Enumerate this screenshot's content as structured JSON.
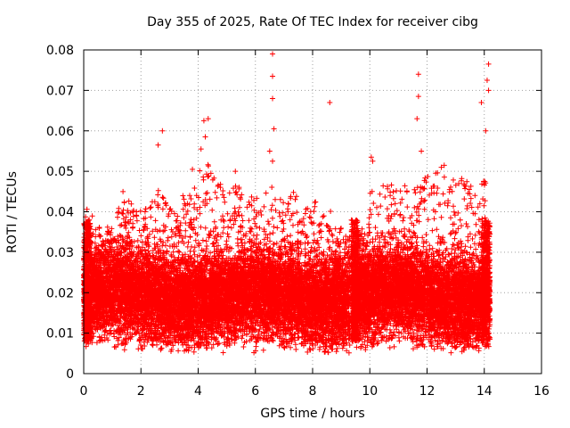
{
  "chart_data": {
    "type": "scatter",
    "title": "Day 355 of 2025, Rate Of TEC Index for receiver cibg",
    "xlabel": "GPS time / hours",
    "ylabel": "ROTI / TECUs",
    "xlim": [
      0,
      16
    ],
    "ylim": [
      0,
      0.08
    ],
    "xticks": [
      0,
      2,
      4,
      6,
      8,
      10,
      12,
      14,
      16
    ],
    "yticks": [
      0,
      0.01,
      0.02,
      0.03,
      0.04,
      0.05,
      0.06,
      0.07,
      0.08
    ],
    "ytick_labels": [
      "0",
      "0.01",
      "0.02",
      "0.03",
      "0.04",
      "0.05",
      "0.06",
      "0.07",
      "0.08"
    ],
    "xtick_labels": [
      "0",
      "2",
      "4",
      "6",
      "8",
      "10",
      "12",
      "14",
      "16"
    ],
    "grid": true,
    "marker": "+",
    "marker_color": "#ff0000",
    "data_coverage_hours": [
      [
        0,
        9.3
      ],
      [
        9.4,
        14.2
      ]
    ],
    "gap_hours": [
      9.3,
      9.4
    ],
    "typical_range": [
      0.008,
      0.035
    ],
    "series": [
      {
        "name": "ROTI",
        "notable_points": [
          {
            "x": 6.6,
            "y": 0.079
          },
          {
            "x": 6.6,
            "y": 0.0735
          },
          {
            "x": 6.6,
            "y": 0.068
          },
          {
            "x": 6.65,
            "y": 0.0605
          },
          {
            "x": 8.6,
            "y": 0.067
          },
          {
            "x": 11.7,
            "y": 0.074
          },
          {
            "x": 11.7,
            "y": 0.0685
          },
          {
            "x": 11.65,
            "y": 0.063
          },
          {
            "x": 14.15,
            "y": 0.0765
          },
          {
            "x": 14.1,
            "y": 0.0725
          },
          {
            "x": 14.15,
            "y": 0.07
          },
          {
            "x": 13.9,
            "y": 0.067
          },
          {
            "x": 14.05,
            "y": 0.06
          },
          {
            "x": 2.75,
            "y": 0.06
          },
          {
            "x": 2.6,
            "y": 0.0565
          },
          {
            "x": 4.2,
            "y": 0.0625
          },
          {
            "x": 4.35,
            "y": 0.063
          },
          {
            "x": 4.25,
            "y": 0.0585
          },
          {
            "x": 4.1,
            "y": 0.0555
          },
          {
            "x": 3.8,
            "y": 0.0505
          },
          {
            "x": 5.3,
            "y": 0.05
          },
          {
            "x": 6.5,
            "y": 0.055
          },
          {
            "x": 6.6,
            "y": 0.0525
          },
          {
            "x": 10.05,
            "y": 0.0535
          },
          {
            "x": 10.1,
            "y": 0.0525
          },
          {
            "x": 11.8,
            "y": 0.055
          },
          {
            "x": 12.5,
            "y": 0.051
          },
          {
            "x": 12.6,
            "y": 0.0515
          }
        ],
        "spike_envelope": [
          {
            "x": 0.1,
            "y": 0.041
          },
          {
            "x": 0.45,
            "y": 0.038
          },
          {
            "x": 0.7,
            "y": 0.036
          },
          {
            "x": 1.0,
            "y": 0.037
          },
          {
            "x": 1.4,
            "y": 0.047
          },
          {
            "x": 1.8,
            "y": 0.04
          },
          {
            "x": 2.2,
            "y": 0.041
          },
          {
            "x": 2.6,
            "y": 0.046
          },
          {
            "x": 3.0,
            "y": 0.041
          },
          {
            "x": 3.4,
            "y": 0.044
          },
          {
            "x": 3.8,
            "y": 0.045
          },
          {
            "x": 4.2,
            "y": 0.054
          },
          {
            "x": 4.6,
            "y": 0.049
          },
          {
            "x": 5.0,
            "y": 0.045
          },
          {
            "x": 5.4,
            "y": 0.047
          },
          {
            "x": 5.8,
            "y": 0.045
          },
          {
            "x": 6.2,
            "y": 0.044
          },
          {
            "x": 6.6,
            "y": 0.047
          },
          {
            "x": 7.0,
            "y": 0.042
          },
          {
            "x": 7.4,
            "y": 0.046
          },
          {
            "x": 7.8,
            "y": 0.041
          },
          {
            "x": 8.2,
            "y": 0.043
          },
          {
            "x": 8.6,
            "y": 0.042
          },
          {
            "x": 9.0,
            "y": 0.036
          },
          {
            "x": 9.6,
            "y": 0.032
          },
          {
            "x": 10.0,
            "y": 0.045
          },
          {
            "x": 10.4,
            "y": 0.047
          },
          {
            "x": 10.8,
            "y": 0.047
          },
          {
            "x": 11.2,
            "y": 0.048
          },
          {
            "x": 11.6,
            "y": 0.046
          },
          {
            "x": 12.0,
            "y": 0.049
          },
          {
            "x": 12.4,
            "y": 0.05
          },
          {
            "x": 12.8,
            "y": 0.048
          },
          {
            "x": 13.2,
            "y": 0.049
          },
          {
            "x": 13.6,
            "y": 0.046
          },
          {
            "x": 14.0,
            "y": 0.048
          }
        ]
      }
    ]
  }
}
